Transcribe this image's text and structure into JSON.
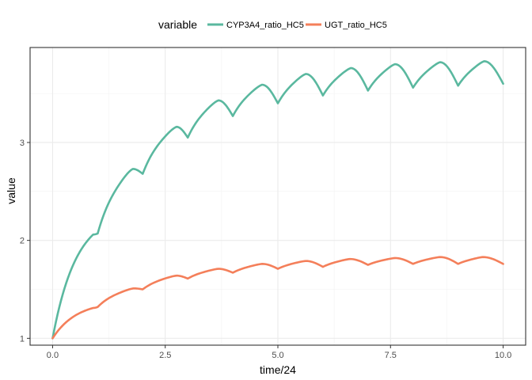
{
  "chart_data": {
    "type": "line",
    "xlabel": "time/24",
    "ylabel": "value",
    "xlim": [
      -0.5,
      10.5
    ],
    "ylim": [
      0.93,
      3.97
    ],
    "x_ticks": [
      0,
      2.5,
      5,
      7.5,
      10
    ],
    "x_tick_labels": [
      "0.0",
      "2.5",
      "5.0",
      "7.5",
      "10.0"
    ],
    "y_ticks": [
      1,
      2,
      3
    ],
    "y_tick_labels": [
      "1",
      "2",
      "3"
    ],
    "grid": true,
    "legend": {
      "position": "top",
      "title": "variable",
      "entries": [
        "CYP3A4_ratio_HC5",
        "UGT_ratio_HC5"
      ]
    },
    "dose_interval": 1,
    "series": [
      {
        "name": "CYP3A4_ratio_HC5",
        "color": "#5ab89f",
        "peaks": [
          [
            0.9,
            2.06
          ],
          [
            1.78,
            2.73
          ],
          [
            2.75,
            3.16
          ],
          [
            3.68,
            3.43
          ],
          [
            4.65,
            3.59
          ],
          [
            5.62,
            3.7
          ],
          [
            6.62,
            3.76
          ],
          [
            7.6,
            3.8
          ],
          [
            8.6,
            3.82
          ],
          [
            9.58,
            3.83
          ]
        ],
        "troughs": [
          [
            0,
            1.0
          ],
          [
            1.0,
            2.07
          ],
          [
            2.0,
            2.68
          ],
          [
            3.0,
            3.05
          ],
          [
            4.0,
            3.27
          ],
          [
            5.0,
            3.4
          ],
          [
            6.0,
            3.48
          ],
          [
            7.0,
            3.53
          ],
          [
            8.0,
            3.56
          ],
          [
            9.0,
            3.58
          ],
          [
            10.0,
            3.6
          ]
        ]
      },
      {
        "name": "UGT_ratio_HC5",
        "color": "#f47f5a",
        "peaks": [
          [
            0.9,
            1.31
          ],
          [
            1.8,
            1.51
          ],
          [
            2.75,
            1.64
          ],
          [
            3.68,
            1.71
          ],
          [
            4.65,
            1.76
          ],
          [
            5.62,
            1.79
          ],
          [
            6.6,
            1.81
          ],
          [
            7.6,
            1.82
          ],
          [
            8.6,
            1.83
          ],
          [
            9.55,
            1.83
          ]
        ],
        "troughs": [
          [
            0,
            1.0
          ],
          [
            1.0,
            1.32
          ],
          [
            2.0,
            1.5
          ],
          [
            3.0,
            1.61
          ],
          [
            4.0,
            1.67
          ],
          [
            5.0,
            1.71
          ],
          [
            6.0,
            1.73
          ],
          [
            7.0,
            1.75
          ],
          [
            8.0,
            1.76
          ],
          [
            9.0,
            1.76
          ],
          [
            10.0,
            1.76
          ]
        ]
      }
    ]
  }
}
